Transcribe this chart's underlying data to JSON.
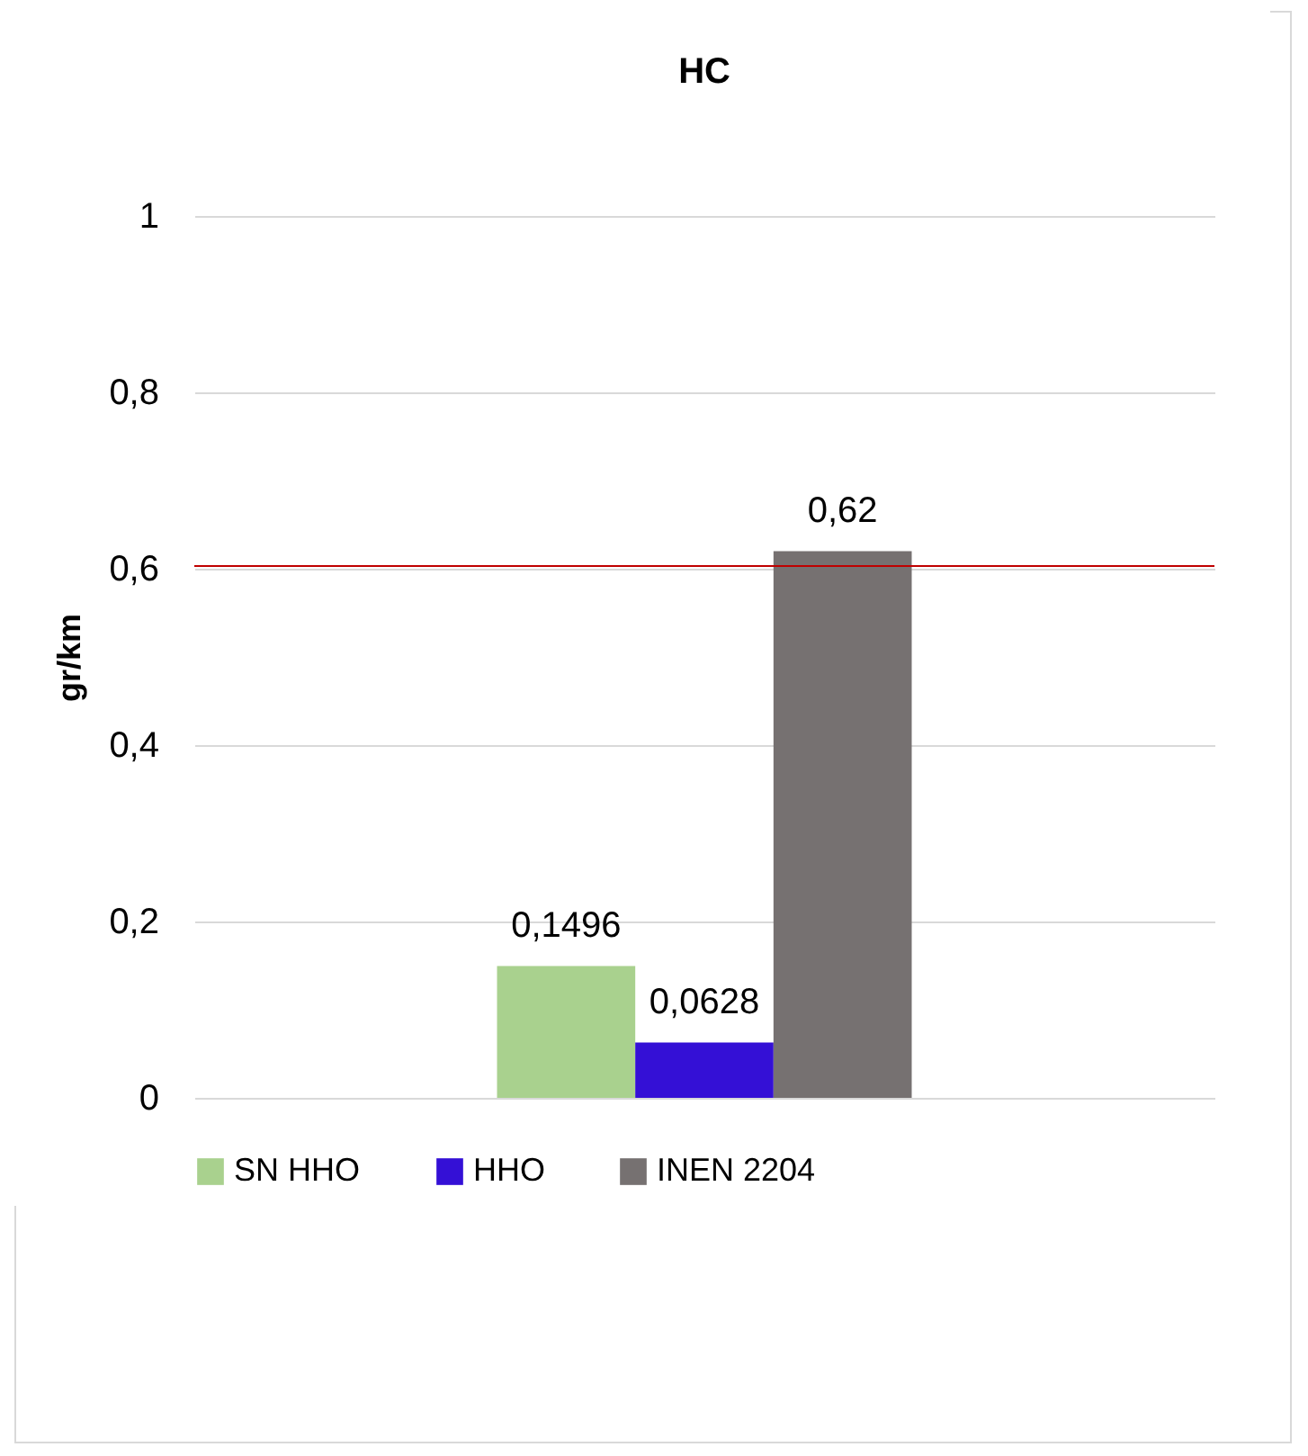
{
  "chart_data": {
    "type": "bar",
    "title": "HC",
    "ylabel": "gr/km",
    "categories": [
      null
    ],
    "series": [
      {
        "name": "SN HHO",
        "color": "#a9d18e",
        "values": [
          0.1496
        ],
        "value_labels": [
          "0,1496"
        ]
      },
      {
        "name": "HHO",
        "color": "#3410d6",
        "values": [
          0.0628
        ],
        "value_labels": [
          "0,0628"
        ]
      },
      {
        "name": "INEN 2204",
        "color": "#767171",
        "values": [
          0.62
        ],
        "value_labels": [
          "0,62"
        ]
      }
    ],
    "ylim": [
      0,
      1
    ],
    "yticks": [
      0,
      {
        "value": 0.2,
        "label": "0,2"
      },
      {
        "value": 0.4,
        "label": "0,4"
      },
      {
        "value": 0.6,
        "label": "0,6"
      },
      {
        "value": 0.8,
        "label": "0,8"
      },
      1
    ],
    "grid": "y",
    "legend": "bottom",
    "ref_lines": [
      {
        "axis": "y",
        "value": 0.603,
        "color": "#c00000"
      }
    ]
  }
}
